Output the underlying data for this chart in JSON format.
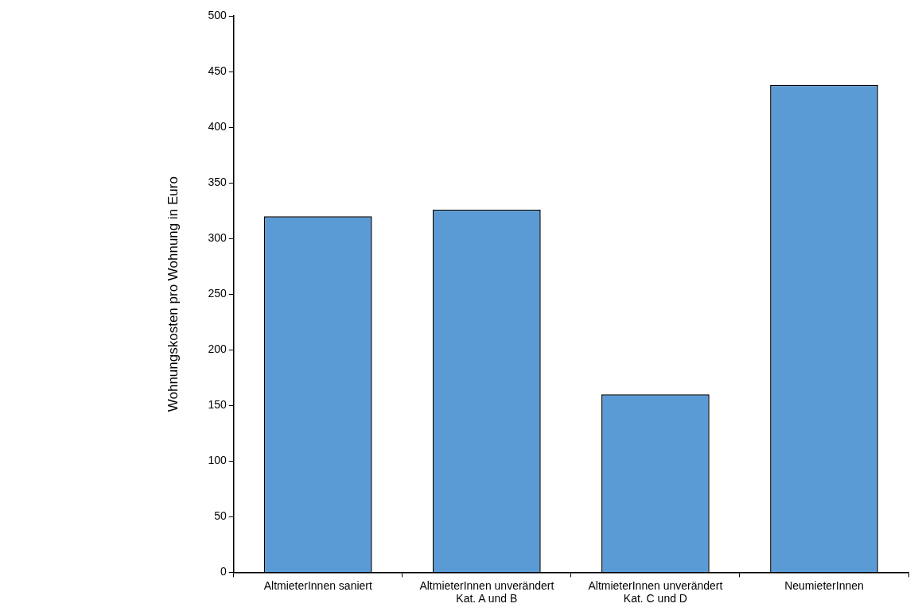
{
  "chart_data": {
    "type": "bar",
    "ylabel": "Wohnungskosten pro Wohnung in Euro",
    "categories": [
      "AltmieterInnen saniert",
      "AltmieterInnen unverändert Kat. A und B",
      "AltmieterInnen unverändert Kat. C und D",
      "NeumieterInnen"
    ],
    "values": [
      320,
      326,
      160,
      438
    ],
    "color": "#5b9bd5",
    "ylim": [
      0,
      500
    ],
    "yticks": [
      0,
      50,
      100,
      150,
      200,
      250,
      300,
      350,
      400,
      450,
      500
    ],
    "grid": false,
    "legend": false
  }
}
